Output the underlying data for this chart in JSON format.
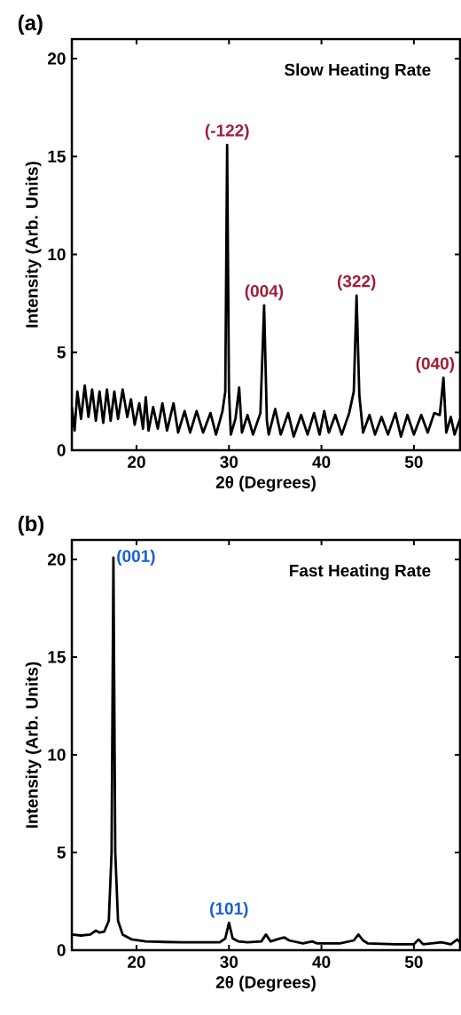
{
  "chart_data": [
    {
      "type": "line",
      "xlabel": "2θ (Degrees)",
      "ylabel": "Intensity (Arb. Units)",
      "xlim": [
        13,
        55
      ],
      "ylim": [
        0,
        21
      ],
      "xticks": [
        20,
        30,
        40,
        50
      ],
      "yticks": [
        0,
        5,
        10,
        15,
        20
      ],
      "series": [
        {
          "color": "#000000",
          "x": [
            13.0,
            13.3,
            13.6,
            14.0,
            14.4,
            14.8,
            15.2,
            15.6,
            16.0,
            16.4,
            16.8,
            17.2,
            17.6,
            18.0,
            18.5,
            19.0,
            19.4,
            19.8,
            20.3,
            20.7,
            21.0,
            21.3,
            21.8,
            22.3,
            22.8,
            23.3,
            24.0,
            24.5,
            25.2,
            25.8,
            26.5,
            27.2,
            28.0,
            28.6,
            29.3,
            29.6,
            29.8,
            30.0,
            30.2,
            30.7,
            31.1,
            31.4,
            32.0,
            32.6,
            33.4,
            33.8,
            34.1,
            34.3,
            35.0,
            35.6,
            36.4,
            37.0,
            37.8,
            38.5,
            39.2,
            39.8,
            40.3,
            40.8,
            41.5,
            42.2,
            43.0,
            43.5,
            43.8,
            44.1,
            44.5,
            45.2,
            45.8,
            46.5,
            47.2,
            48.0,
            48.6,
            49.3,
            50.0,
            50.8,
            51.5,
            52.2,
            52.8,
            53.2,
            53.5,
            54.0,
            54.4,
            55.0
          ],
          "values": [
            2.2,
            1.0,
            3.0,
            1.6,
            3.3,
            1.7,
            3.1,
            1.5,
            3.0,
            1.4,
            3.1,
            1.5,
            3.0,
            1.6,
            3.1,
            1.7,
            2.6,
            1.3,
            2.4,
            1.1,
            2.7,
            1.0,
            2.2,
            1.1,
            2.4,
            1.0,
            2.4,
            0.9,
            2.0,
            0.9,
            2.0,
            0.9,
            1.9,
            0.8,
            2.0,
            3.0,
            15.6,
            3.0,
            0.8,
            1.6,
            3.2,
            0.9,
            1.8,
            0.8,
            1.9,
            7.4,
            1.5,
            0.8,
            2.1,
            0.8,
            1.9,
            0.7,
            1.8,
            0.8,
            1.9,
            0.8,
            2.0,
            0.9,
            1.8,
            0.8,
            1.9,
            3.0,
            7.9,
            2.8,
            0.9,
            1.8,
            0.8,
            1.7,
            0.8,
            1.9,
            0.7,
            1.8,
            0.8,
            1.8,
            0.9,
            1.9,
            1.8,
            3.7,
            0.9,
            1.7,
            0.8,
            1.6
          ]
        }
      ],
      "annotations": [
        "(a)",
        "Slow Heating Rate",
        {
          "text": "(-122)",
          "x": 29.8,
          "y": 15.8
        },
        {
          "text": "(004)",
          "x": 33.8,
          "y": 7.6
        },
        {
          "text": "(322)",
          "x": 43.8,
          "y": 8.1
        },
        {
          "text": "(040)",
          "x": 53.2,
          "y": 3.9
        }
      ]
    },
    {
      "type": "line",
      "xlabel": "2θ (Degrees)",
      "ylabel": "Intensity (Arb. Units)",
      "xlim": [
        13,
        55
      ],
      "ylim": [
        0,
        21
      ],
      "xticks": [
        20,
        30,
        40,
        50
      ],
      "yticks": [
        0,
        5,
        10,
        15,
        20
      ],
      "series": [
        {
          "color": "#000000",
          "x": [
            13.0,
            14.0,
            15.0,
            15.6,
            16.0,
            16.5,
            17.0,
            17.3,
            17.5,
            17.7,
            18.0,
            18.5,
            19.5,
            21.0,
            23.0,
            25.0,
            27.0,
            29.0,
            29.6,
            30.0,
            30.4,
            31.0,
            32.0,
            33.5,
            34.0,
            34.5,
            35.5,
            36.0,
            36.5,
            38.0,
            39.0,
            39.5,
            42.0,
            43.5,
            44.0,
            44.5,
            45.0,
            48.0,
            50.0,
            50.5,
            51.0,
            53.0,
            54.0,
            54.7,
            55.0
          ],
          "values": [
            0.8,
            0.75,
            0.8,
            1.0,
            0.9,
            0.95,
            1.5,
            5.0,
            20.1,
            5.0,
            1.5,
            0.8,
            0.55,
            0.45,
            0.42,
            0.4,
            0.4,
            0.4,
            0.6,
            1.4,
            0.6,
            0.45,
            0.4,
            0.45,
            0.8,
            0.45,
            0.6,
            0.65,
            0.5,
            0.35,
            0.45,
            0.35,
            0.35,
            0.5,
            0.8,
            0.5,
            0.35,
            0.3,
            0.3,
            0.55,
            0.3,
            0.4,
            0.3,
            0.55,
            0.4
          ]
        }
      ],
      "annotations": [
        "(b)",
        "Fast Heating Rate",
        {
          "text": "(001)",
          "x": 17.7,
          "y": 20.1
        },
        {
          "text": "(101)",
          "x": 30.0,
          "y": 1.6
        }
      ]
    }
  ]
}
